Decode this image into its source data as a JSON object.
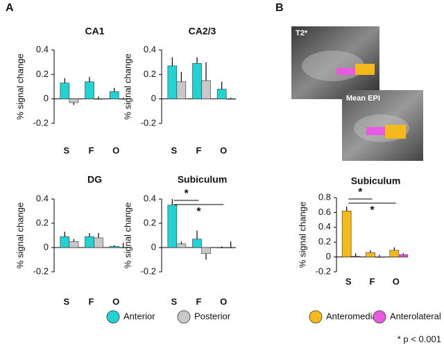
{
  "panels": [
    {
      "label": "A"
    },
    {
      "label": "B"
    }
  ],
  "images": [
    {
      "label": "T2*"
    },
    {
      "label": "Mean EPI"
    }
  ],
  "footnote": "* p < 0.001",
  "chart_data": [
    {
      "type": "bar",
      "title": "CA1",
      "y_label": "% signal change",
      "categories": [
        "S",
        "F",
        "O"
      ],
      "ylim": [
        -0.2,
        0.4
      ],
      "yticks": [
        0.4,
        0.2,
        0,
        -0.2
      ],
      "series": [
        {
          "name": "Anterior",
          "color": "#22d3d3",
          "values": [
            0.13,
            0.14,
            0.06
          ],
          "errors": [
            0.04,
            0.04,
            0.03
          ]
        },
        {
          "name": "Posterior",
          "color": "#c8c8c8",
          "values": [
            -0.03,
            0,
            0
          ],
          "errors": [
            0.02,
            0.02,
            0.01
          ]
        }
      ]
    },
    {
      "type": "bar",
      "title": "CA2/3",
      "y_label": "% signal change",
      "categories": [
        "S",
        "F",
        "O"
      ],
      "ylim": [
        -0.2,
        0.4
      ],
      "yticks": [
        0.4,
        0.2,
        0,
        -0.2
      ],
      "series": [
        {
          "name": "Anterior",
          "color": "#22d3d3",
          "values": [
            0.27,
            0.29,
            0.08
          ],
          "errors": [
            0.07,
            0.05,
            0.06
          ]
        },
        {
          "name": "Posterior",
          "color": "#c8c8c8",
          "values": [
            0.14,
            0.15,
            0
          ],
          "errors": [
            0.08,
            0.15,
            0.01
          ]
        }
      ]
    },
    {
      "type": "bar",
      "title": "DG",
      "y_label": "% signal change",
      "categories": [
        "S",
        "F",
        "O"
      ],
      "ylim": [
        -0.2,
        0.4
      ],
      "yticks": [
        0.4,
        0.2,
        0,
        -0.2
      ],
      "series": [
        {
          "name": "Anterior",
          "color": "#22d3d3",
          "values": [
            0.09,
            0.09,
            0.01
          ],
          "errors": [
            0.04,
            0.03,
            0.01
          ]
        },
        {
          "name": "Posterior",
          "color": "#c8c8c8",
          "values": [
            0.05,
            0.08,
            0
          ],
          "errors": [
            0.02,
            0.04,
            0.04
          ]
        }
      ]
    },
    {
      "type": "bar",
      "title": "Subiculum",
      "y_label": "% signal change",
      "categories": [
        "S",
        "F",
        "O"
      ],
      "ylim": [
        -0.2,
        0.4
      ],
      "yticks": [
        0.4,
        0.2,
        0,
        -0.2
      ],
      "significance": [
        {
          "label": "*",
          "categories": [
            "S",
            "F"
          ]
        },
        {
          "label": "*",
          "categories": [
            "S",
            "O"
          ]
        }
      ],
      "series": [
        {
          "name": "Anterior",
          "color": "#22d3d3",
          "values": [
            0.35,
            0.07,
            0
          ],
          "errors": [
            0.05,
            0.07,
            0.01
          ]
        },
        {
          "name": "Posterior",
          "color": "#c8c8c8",
          "values": [
            0.03,
            -0.05,
            0
          ],
          "errors": [
            0.02,
            0.05,
            0.05
          ]
        }
      ]
    },
    {
      "type": "bar",
      "title": "Subiculum",
      "y_label": "% signal change",
      "categories": [
        "S",
        "F",
        "O"
      ],
      "ylim": [
        -0.2,
        0.8
      ],
      "yticks": [
        0.8,
        0.6,
        0.4,
        0.2,
        0,
        -0.2
      ],
      "significance": [
        {
          "label": "*",
          "categories": [
            "S",
            "F"
          ]
        },
        {
          "label": "*",
          "categories": [
            "S",
            "O"
          ]
        }
      ],
      "series": [
        {
          "name": "Anteromedial",
          "color": "#f5b91c",
          "values": [
            0.62,
            0.06,
            0.09
          ],
          "errors": [
            0.06,
            0.03,
            0.04
          ]
        },
        {
          "name": "Anterolateral",
          "color": "#e85be0",
          "values": [
            0.01,
            0,
            0.03
          ],
          "errors": [
            0.04,
            0.03,
            0.02
          ]
        }
      ]
    }
  ]
}
